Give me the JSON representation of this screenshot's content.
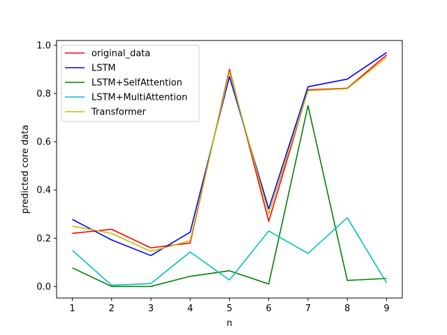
{
  "chart_data": {
    "type": "line",
    "title": "",
    "xlabel": "n",
    "ylabel": "predicted core data",
    "x": [
      1,
      2,
      3,
      4,
      5,
      6,
      7,
      8,
      9
    ],
    "xlim": [
      0.6,
      9.4
    ],
    "ylim": [
      -0.048,
      1.02
    ],
    "xticks": [
      1,
      2,
      3,
      4,
      5,
      6,
      7,
      8,
      9
    ],
    "yticks": [
      0.0,
      0.2,
      0.4,
      0.6,
      0.8,
      1.0
    ],
    "ytick_labels": [
      "0.0",
      "0.2",
      "0.4",
      "0.6",
      "0.8",
      "1.0"
    ],
    "grid": false,
    "legend_position": "top-left",
    "series": [
      {
        "name": "original_data",
        "color": "#ff0000",
        "values": [
          0.22,
          0.237,
          0.16,
          0.18,
          0.9,
          0.27,
          0.815,
          0.822,
          0.96
        ]
      },
      {
        "name": "LSTM",
        "color": "#0000ff",
        "values": [
          0.278,
          0.193,
          0.128,
          0.225,
          0.87,
          0.322,
          0.828,
          0.86,
          0.97
        ]
      },
      {
        "name": "LSTM+SelfAttention",
        "color": "#008000",
        "values": [
          0.077,
          0.0,
          0.0,
          0.042,
          0.065,
          0.01,
          0.75,
          0.025,
          0.033
        ]
      },
      {
        "name": "LSTM+MultiAttention",
        "color": "#00bfbf",
        "values": [
          0.15,
          0.005,
          0.012,
          0.143,
          0.027,
          0.23,
          0.137,
          0.285,
          0.015
        ]
      },
      {
        "name": "Transformer",
        "color": "#bfbf00",
        "values": [
          0.25,
          0.22,
          0.145,
          0.19,
          0.89,
          0.3,
          0.812,
          0.82,
          0.95
        ]
      }
    ]
  }
}
